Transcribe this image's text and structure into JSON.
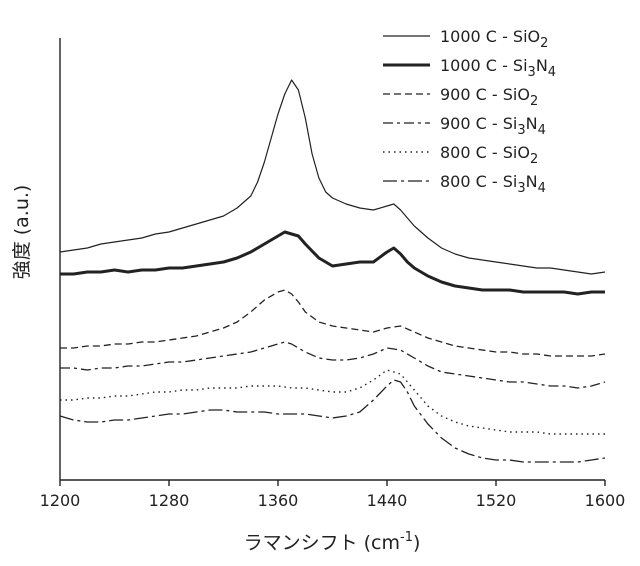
{
  "chart_data": {
    "type": "line",
    "title": "",
    "xlabel_main": "ラマンシフト (cm",
    "xlabel_sup": "-1",
    "xlabel_close": ")",
    "ylabel": "強度 (a.u.)",
    "xlim": [
      1200,
      1600
    ],
    "x_ticks": [
      "1200",
      "1280",
      "1360",
      "1440",
      "1520",
      "1600"
    ],
    "y_ticks": [],
    "ylim": [
      0,
      10
    ],
    "grid": false,
    "legend_position": "top-right",
    "series": [
      {
        "name": "1000 C - SiO2",
        "label_main": "1000 C - SiO",
        "label_sub": "2",
        "label_sub2": "",
        "label_main2": "",
        "style": "solid-thin",
        "color": "#222222",
        "x": [
          1200,
          1210,
          1220,
          1230,
          1240,
          1250,
          1260,
          1270,
          1280,
          1290,
          1300,
          1310,
          1320,
          1330,
          1340,
          1345,
          1350,
          1355,
          1360,
          1365,
          1370,
          1375,
          1380,
          1385,
          1390,
          1395,
          1400,
          1410,
          1420,
          1430,
          1440,
          1445,
          1450,
          1455,
          1460,
          1470,
          1480,
          1490,
          1500,
          1510,
          1520,
          1530,
          1540,
          1550,
          1560,
          1570,
          1580,
          1590,
          1600
        ],
        "y": [
          5.45,
          5.5,
          5.55,
          5.65,
          5.7,
          5.75,
          5.8,
          5.9,
          5.95,
          6.05,
          6.15,
          6.25,
          6.35,
          6.55,
          6.85,
          7.2,
          7.7,
          8.3,
          8.9,
          9.4,
          9.75,
          9.5,
          8.8,
          7.9,
          7.3,
          6.95,
          6.8,
          6.65,
          6.55,
          6.5,
          6.6,
          6.65,
          6.5,
          6.3,
          6.1,
          5.8,
          5.55,
          5.4,
          5.3,
          5.25,
          5.2,
          5.15,
          5.1,
          5.05,
          5.05,
          5.0,
          4.95,
          4.9,
          4.95
        ]
      },
      {
        "name": "1000 C - Si3N4",
        "label_main": "1000 C - Si",
        "label_sub": "3",
        "label_main2": "N",
        "label_sub2": "4",
        "style": "solid-thick",
        "color": "#222222",
        "x": [
          1200,
          1210,
          1220,
          1230,
          1240,
          1250,
          1260,
          1270,
          1280,
          1290,
          1300,
          1310,
          1320,
          1330,
          1340,
          1350,
          1360,
          1365,
          1370,
          1375,
          1380,
          1390,
          1400,
          1410,
          1420,
          1430,
          1440,
          1445,
          1450,
          1455,
          1460,
          1470,
          1480,
          1490,
          1500,
          1510,
          1520,
          1530,
          1540,
          1550,
          1560,
          1570,
          1580,
          1590,
          1600
        ],
        "y": [
          4.9,
          4.9,
          4.95,
          4.95,
          5.0,
          4.95,
          5.0,
          5.0,
          5.05,
          5.05,
          5.1,
          5.15,
          5.2,
          5.3,
          5.45,
          5.65,
          5.85,
          5.95,
          5.9,
          5.85,
          5.65,
          5.3,
          5.1,
          5.15,
          5.2,
          5.2,
          5.45,
          5.55,
          5.4,
          5.2,
          5.05,
          4.85,
          4.7,
          4.6,
          4.55,
          4.5,
          4.5,
          4.5,
          4.45,
          4.45,
          4.45,
          4.45,
          4.4,
          4.45,
          4.45
        ]
      },
      {
        "name": "900 C - SiO2",
        "label_main": "900 C - SiO",
        "label_sub": "2",
        "label_sub2": "",
        "label_main2": "",
        "style": "dash",
        "color": "#222222",
        "x": [
          1200,
          1210,
          1220,
          1230,
          1240,
          1250,
          1260,
          1270,
          1280,
          1290,
          1300,
          1310,
          1320,
          1330,
          1340,
          1350,
          1360,
          1365,
          1370,
          1375,
          1380,
          1390,
          1400,
          1410,
          1420,
          1430,
          1440,
          1450,
          1460,
          1470,
          1480,
          1490,
          1500,
          1510,
          1520,
          1530,
          1540,
          1550,
          1560,
          1570,
          1580,
          1590,
          1600
        ],
        "y": [
          3.05,
          3.05,
          3.1,
          3.1,
          3.15,
          3.15,
          3.2,
          3.2,
          3.25,
          3.3,
          3.35,
          3.45,
          3.55,
          3.7,
          3.95,
          4.25,
          4.45,
          4.5,
          4.4,
          4.2,
          3.95,
          3.7,
          3.6,
          3.55,
          3.5,
          3.45,
          3.55,
          3.6,
          3.45,
          3.3,
          3.2,
          3.1,
          3.05,
          3.0,
          2.95,
          2.95,
          2.9,
          2.9,
          2.85,
          2.85,
          2.85,
          2.85,
          2.9
        ]
      },
      {
        "name": "900 C - Si3N4",
        "label_main": "900 C - Si",
        "label_sub": "3",
        "label_main2": "N",
        "label_sub2": "4",
        "style": "dashdot",
        "color": "#222222",
        "x": [
          1200,
          1210,
          1220,
          1230,
          1240,
          1250,
          1260,
          1270,
          1280,
          1290,
          1300,
          1310,
          1320,
          1330,
          1340,
          1350,
          1360,
          1365,
          1370,
          1375,
          1380,
          1390,
          1400,
          1410,
          1420,
          1430,
          1440,
          1450,
          1460,
          1470,
          1480,
          1490,
          1500,
          1510,
          1520,
          1530,
          1540,
          1550,
          1560,
          1570,
          1580,
          1590,
          1600
        ],
        "y": [
          2.55,
          2.55,
          2.5,
          2.55,
          2.55,
          2.6,
          2.6,
          2.65,
          2.7,
          2.7,
          2.75,
          2.8,
          2.85,
          2.9,
          2.95,
          3.05,
          3.15,
          3.2,
          3.15,
          3.05,
          2.95,
          2.8,
          2.75,
          2.75,
          2.8,
          2.9,
          3.05,
          3.0,
          2.8,
          2.6,
          2.45,
          2.4,
          2.35,
          2.3,
          2.25,
          2.2,
          2.2,
          2.15,
          2.1,
          2.1,
          2.05,
          2.1,
          2.2
        ]
      },
      {
        "name": "800 C - SiO2",
        "label_main": "800 C - SiO",
        "label_sub": "2",
        "label_sub2": "",
        "label_main2": "",
        "style": "dot",
        "color": "#222222",
        "x": [
          1200,
          1210,
          1220,
          1230,
          1240,
          1250,
          1260,
          1270,
          1280,
          1290,
          1300,
          1310,
          1320,
          1330,
          1340,
          1350,
          1360,
          1370,
          1380,
          1390,
          1400,
          1410,
          1420,
          1430,
          1440,
          1450,
          1460,
          1470,
          1480,
          1490,
          1500,
          1510,
          1520,
          1530,
          1540,
          1550,
          1560,
          1570,
          1580,
          1590,
          1600
        ],
        "y": [
          1.75,
          1.75,
          1.8,
          1.8,
          1.85,
          1.85,
          1.9,
          1.95,
          1.95,
          2.0,
          2.0,
          2.05,
          2.05,
          2.05,
          2.1,
          2.1,
          2.1,
          2.05,
          2.05,
          2.0,
          1.95,
          1.95,
          2.05,
          2.25,
          2.5,
          2.4,
          2.0,
          1.6,
          1.35,
          1.2,
          1.1,
          1.05,
          1.0,
          0.95,
          0.95,
          0.95,
          0.9,
          0.9,
          0.9,
          0.9,
          0.9
        ]
      },
      {
        "name": "800 C - Si3N4",
        "label_main": "800 C - Si",
        "label_sub": "3",
        "label_main2": "N",
        "label_sub2": "4",
        "style": "dashdot-long",
        "color": "#222222",
        "x": [
          1200,
          1210,
          1220,
          1230,
          1240,
          1250,
          1260,
          1270,
          1280,
          1290,
          1300,
          1310,
          1320,
          1330,
          1340,
          1350,
          1360,
          1370,
          1380,
          1390,
          1400,
          1410,
          1420,
          1430,
          1440,
          1445,
          1450,
          1455,
          1460,
          1470,
          1480,
          1490,
          1500,
          1510,
          1520,
          1530,
          1540,
          1550,
          1560,
          1570,
          1580,
          1590,
          1600
        ],
        "y": [
          1.35,
          1.25,
          1.2,
          1.2,
          1.25,
          1.25,
          1.3,
          1.35,
          1.4,
          1.4,
          1.45,
          1.5,
          1.5,
          1.45,
          1.45,
          1.45,
          1.4,
          1.4,
          1.4,
          1.35,
          1.3,
          1.35,
          1.45,
          1.75,
          2.1,
          2.25,
          2.2,
          1.95,
          1.6,
          1.15,
          0.8,
          0.55,
          0.4,
          0.3,
          0.25,
          0.25,
          0.2,
          0.2,
          0.2,
          0.2,
          0.2,
          0.25,
          0.3
        ]
      }
    ]
  }
}
